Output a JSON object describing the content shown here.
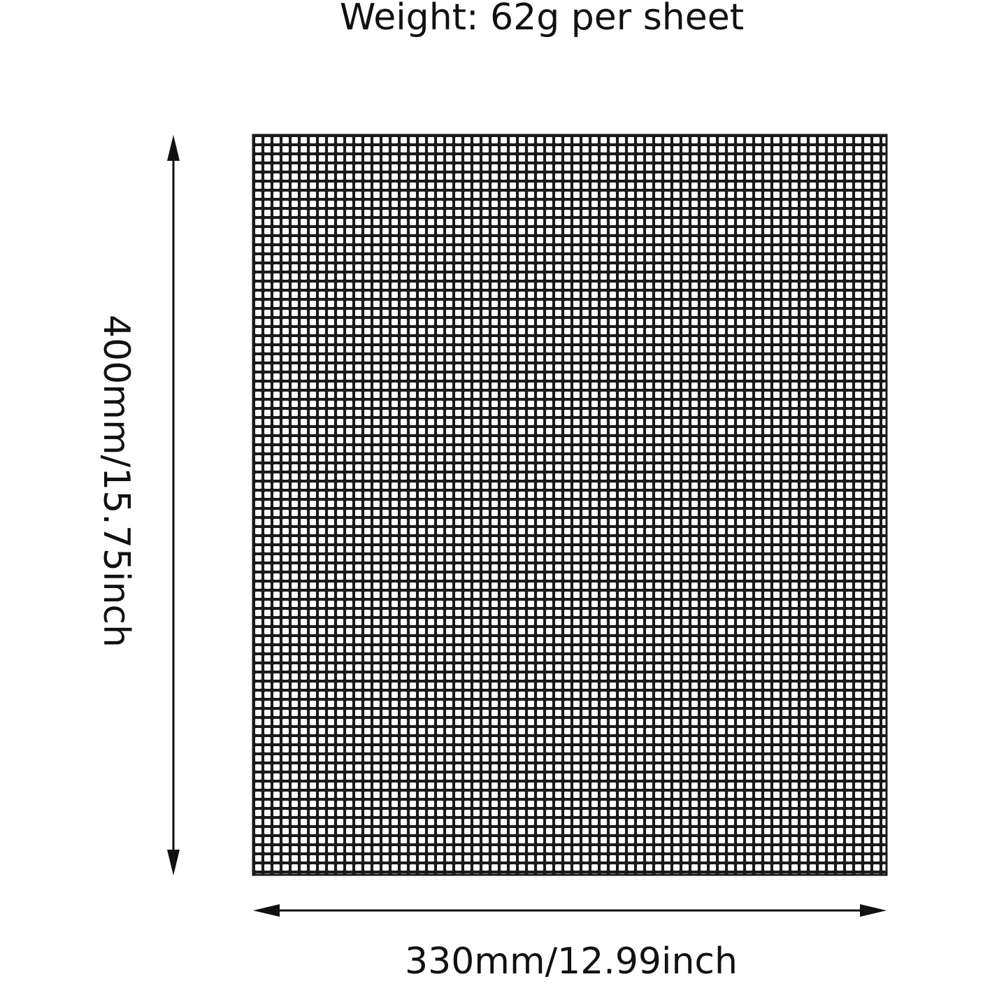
{
  "title": "Weight: 62g per sheet",
  "height_label": "400mm/15.75inch",
  "width_label": "330mm/12.99inch"
}
